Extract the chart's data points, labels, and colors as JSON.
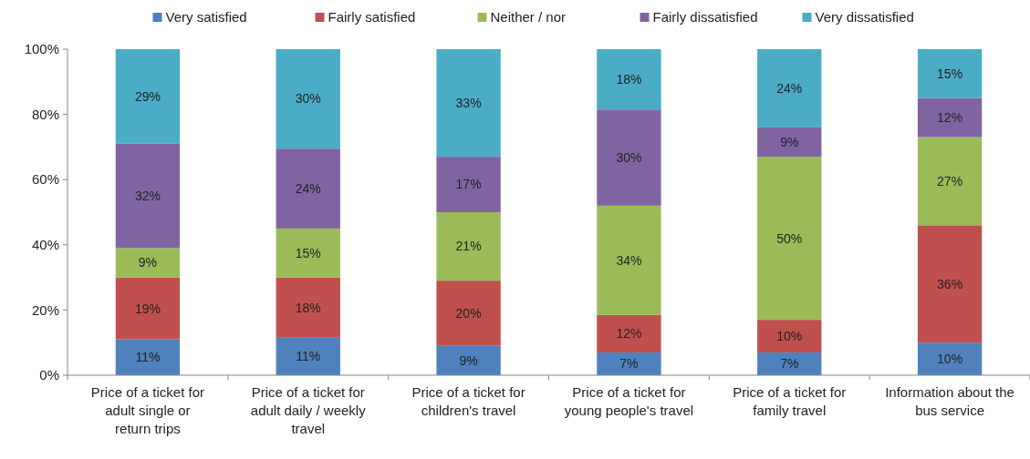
{
  "chart_data": {
    "type": "bar",
    "stacked": true,
    "legend": "top",
    "grid": false,
    "categories": [
      "Price of a ticket for adult single or return trips",
      "Price of a ticket for adult daily / weekly travel",
      "Price of a ticket for children's travel",
      "Price of a ticket for young people's travel",
      "Price of a ticket for family travel",
      "Information about the bus service"
    ],
    "series": [
      {
        "name": "Very satisfied",
        "color": "#4f81bd",
        "values": [
          11,
          11.5,
          9,
          7,
          7,
          10
        ],
        "value_labels": [
          "11%",
          "11%",
          "9%",
          "7%",
          "7%",
          "10%"
        ]
      },
      {
        "name": "Fairly satisfied",
        "color": "#c0504d",
        "values": [
          19,
          18.5,
          20,
          11.5,
          10,
          36
        ],
        "value_labels": [
          "19%",
          "18%",
          "20%",
          "12%",
          "10%",
          "36%"
        ]
      },
      {
        "name": "Neither / nor",
        "color": "#9bbb59",
        "values": [
          9,
          15,
          21,
          33.5,
          50,
          27
        ],
        "value_labels": [
          "9%",
          "15%",
          "21%",
          "34%",
          "50%",
          "27%"
        ]
      },
      {
        "name": "Fairly dissatisfied",
        "color": "#8064a2",
        "values": [
          32,
          24.5,
          17,
          29.5,
          9,
          12
        ],
        "value_labels": [
          "32%",
          "24%",
          "17%",
          "30%",
          "9%",
          "12%"
        ]
      },
      {
        "name": "Very dissatisfied",
        "color": "#4bacc6",
        "values": [
          29,
          30.5,
          33,
          18.5,
          24,
          15
        ],
        "value_labels": [
          "29%",
          "30%",
          "33%",
          "18%",
          "24%",
          "15%"
        ]
      }
    ],
    "ylim": [
      0,
      100
    ],
    "yticks": [
      {
        "value": 0,
        "label": "0%"
      },
      {
        "value": 20,
        "label": "20%"
      },
      {
        "value": 40,
        "label": "40%"
      },
      {
        "value": 60,
        "label": "60%"
      },
      {
        "value": 80,
        "label": "80%"
      },
      {
        "value": 100,
        "label": "100%"
      }
    ]
  }
}
